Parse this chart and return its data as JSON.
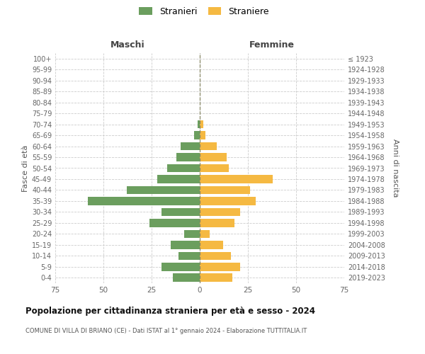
{
  "age_groups": [
    "100+",
    "95-99",
    "90-94",
    "85-89",
    "80-84",
    "75-79",
    "70-74",
    "65-69",
    "60-64",
    "55-59",
    "50-54",
    "45-49",
    "40-44",
    "35-39",
    "30-34",
    "25-29",
    "20-24",
    "15-19",
    "10-14",
    "5-9",
    "0-4"
  ],
  "birth_years": [
    "≤ 1923",
    "1924-1928",
    "1929-1933",
    "1934-1938",
    "1939-1943",
    "1944-1948",
    "1949-1953",
    "1954-1958",
    "1959-1963",
    "1964-1968",
    "1969-1973",
    "1974-1978",
    "1979-1983",
    "1984-1988",
    "1989-1993",
    "1994-1998",
    "1999-2003",
    "2004-2008",
    "2009-2013",
    "2014-2018",
    "2019-2023"
  ],
  "maschi": [
    0,
    0,
    0,
    0,
    0,
    0,
    1,
    3,
    10,
    12,
    17,
    22,
    38,
    58,
    20,
    26,
    8,
    15,
    11,
    20,
    14
  ],
  "femmine": [
    0,
    0,
    0,
    0,
    0,
    0,
    2,
    3,
    9,
    14,
    15,
    38,
    26,
    29,
    21,
    18,
    5,
    12,
    16,
    21,
    17
  ],
  "male_color": "#6b9e5e",
  "female_color": "#f5b942",
  "bg_color": "#ffffff",
  "grid_color": "#cccccc",
  "title": "Popolazione per cittadinanza straniera per età e sesso - 2024",
  "subtitle": "COMUNE DI VILLA DI BRIANO (CE) - Dati ISTAT al 1° gennaio 2024 - Elaborazione TUTTITALIA.IT",
  "header_left": "Maschi",
  "header_right": "Femmine",
  "ylabel_left": "Fasce di età",
  "ylabel_right": "Anni di nascita",
  "xlim": 75,
  "legend_maschi": "Stranieri",
  "legend_femmine": "Straniere"
}
